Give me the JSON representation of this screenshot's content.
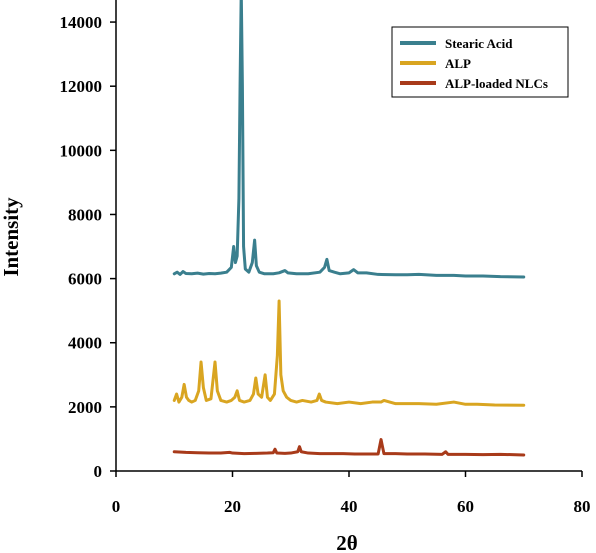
{
  "chart_data": {
    "type": "line",
    "xlabel": "2θ",
    "ylabel": "Intensity",
    "xlim": [
      0,
      80
    ],
    "ylim": [
      0,
      15000
    ],
    "xticks": [
      0,
      20,
      40,
      60,
      80
    ],
    "yticks": [
      0,
      2000,
      4000,
      6000,
      8000,
      10000,
      12000,
      14000
    ],
    "legend_position": "top-right",
    "grid": false,
    "series": [
      {
        "name": "Stearic Acid",
        "color": "#3a7f8e",
        "points": [
          [
            10,
            6150
          ],
          [
            10.5,
            6200
          ],
          [
            11,
            6130
          ],
          [
            11.5,
            6220
          ],
          [
            12,
            6160
          ],
          [
            13,
            6150
          ],
          [
            14,
            6170
          ],
          [
            15,
            6140
          ],
          [
            16,
            6160
          ],
          [
            17,
            6150
          ],
          [
            18,
            6170
          ],
          [
            19,
            6200
          ],
          [
            19.8,
            6350
          ],
          [
            20.2,
            7000
          ],
          [
            20.5,
            6500
          ],
          [
            20.8,
            6700
          ],
          [
            21.1,
            8500
          ],
          [
            21.3,
            12000
          ],
          [
            21.5,
            15000
          ],
          [
            21.7,
            12000
          ],
          [
            21.9,
            7000
          ],
          [
            22.2,
            6300
          ],
          [
            22.8,
            6200
          ],
          [
            23.4,
            6500
          ],
          [
            23.8,
            7200
          ],
          [
            24.1,
            6400
          ],
          [
            24.6,
            6200
          ],
          [
            25.5,
            6150
          ],
          [
            27,
            6150
          ],
          [
            28,
            6180
          ],
          [
            29,
            6250
          ],
          [
            29.5,
            6180
          ],
          [
            31,
            6150
          ],
          [
            33,
            6150
          ],
          [
            35,
            6200
          ],
          [
            35.8,
            6350
          ],
          [
            36.2,
            6600
          ],
          [
            36.6,
            6250
          ],
          [
            37.5,
            6200
          ],
          [
            38.5,
            6150
          ],
          [
            40,
            6180
          ],
          [
            40.8,
            6280
          ],
          [
            41.5,
            6180
          ],
          [
            43,
            6180
          ],
          [
            45,
            6130
          ],
          [
            48,
            6120
          ],
          [
            50,
            6120
          ],
          [
            52,
            6130
          ],
          [
            55,
            6100
          ],
          [
            58,
            6100
          ],
          [
            60,
            6080
          ],
          [
            63,
            6080
          ],
          [
            66,
            6060
          ],
          [
            70,
            6050
          ]
        ]
      },
      {
        "name": "ALP",
        "color": "#d9a521",
        "points": [
          [
            10,
            2200
          ],
          [
            10.4,
            2400
          ],
          [
            10.8,
            2150
          ],
          [
            11.3,
            2300
          ],
          [
            11.7,
            2700
          ],
          [
            12.1,
            2300
          ],
          [
            12.5,
            2200
          ],
          [
            13,
            2150
          ],
          [
            13.6,
            2200
          ],
          [
            14.2,
            2500
          ],
          [
            14.6,
            3400
          ],
          [
            15,
            2600
          ],
          [
            15.5,
            2200
          ],
          [
            16.3,
            2250
          ],
          [
            17,
            3400
          ],
          [
            17.4,
            2500
          ],
          [
            18,
            2200
          ],
          [
            19,
            2150
          ],
          [
            19.8,
            2200
          ],
          [
            20.4,
            2300
          ],
          [
            20.8,
            2500
          ],
          [
            21.2,
            2200
          ],
          [
            22,
            2150
          ],
          [
            23,
            2200
          ],
          [
            23.6,
            2400
          ],
          [
            24,
            2900
          ],
          [
            24.4,
            2400
          ],
          [
            25,
            2300
          ],
          [
            25.6,
            3000
          ],
          [
            26,
            2300
          ],
          [
            26.5,
            2200
          ],
          [
            27.2,
            2400
          ],
          [
            27.7,
            3600
          ],
          [
            28,
            5300
          ],
          [
            28.3,
            3000
          ],
          [
            28.7,
            2500
          ],
          [
            29.3,
            2300
          ],
          [
            30,
            2200
          ],
          [
            31,
            2150
          ],
          [
            32,
            2200
          ],
          [
            33.5,
            2150
          ],
          [
            34.5,
            2200
          ],
          [
            34.9,
            2400
          ],
          [
            35.3,
            2200
          ],
          [
            36,
            2150
          ],
          [
            38,
            2100
          ],
          [
            40,
            2150
          ],
          [
            42,
            2100
          ],
          [
            44,
            2150
          ],
          [
            45.5,
            2150
          ],
          [
            46,
            2200
          ],
          [
            48,
            2100
          ],
          [
            50,
            2100
          ],
          [
            52,
            2100
          ],
          [
            55,
            2080
          ],
          [
            58,
            2150
          ],
          [
            60,
            2080
          ],
          [
            62,
            2080
          ],
          [
            65,
            2060
          ],
          [
            70,
            2050
          ]
        ]
      },
      {
        "name": "ALP-loaded NLCs",
        "color": "#a83a1a",
        "points": [
          [
            10,
            600
          ],
          [
            12,
            580
          ],
          [
            14,
            570
          ],
          [
            16,
            560
          ],
          [
            18,
            560
          ],
          [
            19.5,
            580
          ],
          [
            20,
            560
          ],
          [
            22,
            540
          ],
          [
            24,
            550
          ],
          [
            26,
            560
          ],
          [
            27,
            570
          ],
          [
            27.3,
            680
          ],
          [
            27.6,
            560
          ],
          [
            29,
            550
          ],
          [
            30,
            560
          ],
          [
            31.2,
            600
          ],
          [
            31.5,
            760
          ],
          [
            31.8,
            600
          ],
          [
            33,
            560
          ],
          [
            35,
            540
          ],
          [
            37,
            540
          ],
          [
            39,
            540
          ],
          [
            41,
            530
          ],
          [
            43,
            530
          ],
          [
            45,
            530
          ],
          [
            45.3,
            800
          ],
          [
            45.5,
            980
          ],
          [
            45.7,
            800
          ],
          [
            46,
            540
          ],
          [
            48,
            540
          ],
          [
            50,
            530
          ],
          [
            53,
            530
          ],
          [
            56,
            520
          ],
          [
            56.6,
            600
          ],
          [
            57,
            520
          ],
          [
            60,
            520
          ],
          [
            63,
            510
          ],
          [
            66,
            520
          ],
          [
            70,
            500
          ]
        ]
      }
    ]
  }
}
